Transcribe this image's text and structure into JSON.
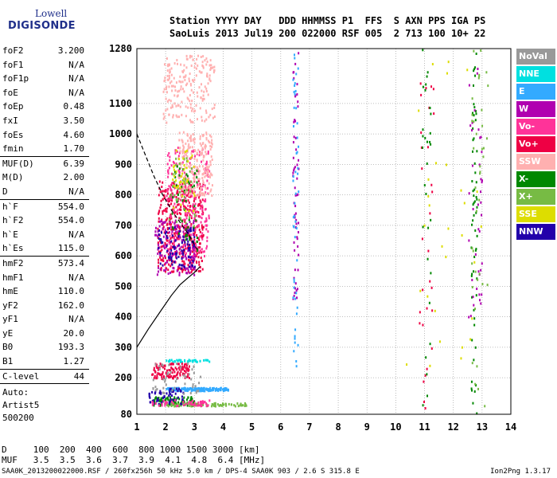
{
  "logo": {
    "line1": "Lowell",
    "line2": "DIGISONDE"
  },
  "header": {
    "row1": "Station YYYY DAY   DDD HHMMSS P1  FFS  S AXN PPS IGA PS",
    "row2": "SaoLuis 2013 Jul19 200 022000 RSF 005  2 713 100 10+ 22"
  },
  "params": [
    {
      "name": "foF2",
      "value": "3.200"
    },
    {
      "name": "foF1",
      "value": "N/A"
    },
    {
      "name": "foF1p",
      "value": "N/A"
    },
    {
      "name": "foE",
      "value": "N/A"
    },
    {
      "name": "foEp",
      "value": "0.48"
    },
    {
      "name": "fxI",
      "value": "3.50"
    },
    {
      "name": "foEs",
      "value": "4.60"
    },
    {
      "name": "fmin",
      "value": "1.70"
    },
    {
      "name": "MUF(D)",
      "value": "6.39"
    },
    {
      "name": "M(D)",
      "value": "2.00"
    },
    {
      "name": "D",
      "value": "N/A"
    },
    {
      "name": "h`F",
      "value": "554.0"
    },
    {
      "name": "h`F2",
      "value": "554.0"
    },
    {
      "name": "h`E",
      "value": "N/A"
    },
    {
      "name": "h`Es",
      "value": "115.0"
    },
    {
      "name": "hmF2",
      "value": "573.4"
    },
    {
      "name": "hmF1",
      "value": "N/A"
    },
    {
      "name": "hmE",
      "value": "110.0"
    },
    {
      "name": "yF2",
      "value": "162.0"
    },
    {
      "name": "yF1",
      "value": "N/A"
    },
    {
      "name": "yE",
      "value": "20.0"
    },
    {
      "name": "B0",
      "value": "193.3"
    },
    {
      "name": "B1",
      "value": "1.27"
    },
    {
      "name": "C-level",
      "value": "44"
    }
  ],
  "auto": {
    "line1": "Auto:",
    "line2": "Artist5",
    "line3": "500200"
  },
  "legend": [
    {
      "label": "NoVal",
      "color": "#999999"
    },
    {
      "label": "NNE",
      "color": "#00e0e0"
    },
    {
      "label": "E",
      "color": "#33aaff"
    },
    {
      "label": "W",
      "color": "#b000b0"
    },
    {
      "label": "Vo-",
      "color": "#ff3399"
    },
    {
      "label": "Vo+",
      "color": "#ee0044"
    },
    {
      "label": "SSW",
      "color": "#ffb0b0"
    },
    {
      "label": "X-",
      "color": "#008800"
    },
    {
      "label": "X+",
      "color": "#77bb44"
    },
    {
      "label": "SSE",
      "color": "#dddd00"
    },
    {
      "label": "NNW",
      "color": "#2200aa"
    }
  ],
  "muf_table": {
    "row1": "D     100  200  400  600  800 1000 1500 3000 [km]",
    "row2": "MUF   3.5  3.5  3.6  3.7  3.9  4.1  4.8  6.4 [MHz]"
  },
  "footer": "SAA0K_2013200022000.RSF / 260fx256h 50 kHz 5.0 km / DPS-4 SAA0K 903 / 2.6 S 315.8 E",
  "version": "Ion2Png 1.3.17",
  "chart_data": {
    "type": "scatter",
    "x_ticks": [
      1,
      2,
      3,
      4,
      5,
      6,
      7,
      8,
      9,
      10,
      11,
      12,
      13,
      14
    ],
    "y_ticks": [
      80,
      200,
      300,
      400,
      500,
      600,
      700,
      800,
      900,
      1000,
      1100,
      1280
    ],
    "xlim": [
      1,
      14
    ],
    "ylim": [
      80,
      1280
    ],
    "grid": true,
    "profile_curve": {
      "x": [
        1.0,
        1.4,
        1.8,
        2.2,
        2.5,
        2.8,
        3.0,
        3.2
      ],
      "y": [
        300,
        360,
        415,
        470,
        505,
        530,
        545,
        565
      ]
    },
    "dashed_curve": {
      "x": [
        1.0,
        1.3,
        1.6,
        1.9,
        2.2,
        2.5,
        2.8,
        3.1
      ],
      "y": [
        1000,
        930,
        860,
        800,
        750,
        710,
        670,
        620
      ]
    },
    "clusters": [
      {
        "mode": "Vo+",
        "x": [
          1.7,
          3.3
        ],
        "y": [
          550,
          850
        ],
        "n": 420
      },
      {
        "mode": "Vo-",
        "x": [
          2.0,
          3.5
        ],
        "y": [
          600,
          960
        ],
        "n": 260
      },
      {
        "mode": "SSW",
        "x": [
          2.4,
          3.6
        ],
        "y": [
          800,
          1010
        ],
        "n": 220
      },
      {
        "mode": "SSW",
        "x": [
          1.9,
          3.7
        ],
        "y": [
          1040,
          1260
        ],
        "n": 200
      },
      {
        "mode": "W",
        "x": [
          1.6,
          3.0
        ],
        "y": [
          540,
          720
        ],
        "n": 140
      },
      {
        "mode": "NNW",
        "x": [
          1.7,
          3.0
        ],
        "y": [
          560,
          700
        ],
        "n": 90
      },
      {
        "mode": "X-",
        "x": [
          2.2,
          3.1
        ],
        "y": [
          620,
          900
        ],
        "n": 50
      },
      {
        "mode": "X+",
        "x": [
          2.1,
          3.0
        ],
        "y": [
          700,
          930
        ],
        "n": 40
      },
      {
        "mode": "SSE",
        "x": [
          2.2,
          3.0
        ],
        "y": [
          750,
          950
        ],
        "n": 40
      },
      {
        "mode": "E",
        "x": [
          2.0,
          4.2
        ],
        "y": [
          160,
          170
        ],
        "n": 160
      },
      {
        "mode": "NNE",
        "x": [
          2.0,
          3.5
        ],
        "y": [
          255,
          262
        ],
        "n": 40
      },
      {
        "mode": "Vo+",
        "x": [
          1.5,
          2.8
        ],
        "y": [
          200,
          250
        ],
        "n": 120
      },
      {
        "mode": "X-",
        "x": [
          1.5,
          3.0
        ],
        "y": [
          110,
          140
        ],
        "n": 90
      },
      {
        "mode": "X+",
        "x": [
          2.0,
          4.8
        ],
        "y": [
          110,
          120
        ],
        "n": 90
      },
      {
        "mode": "NNW",
        "x": [
          1.4,
          2.6
        ],
        "y": [
          115,
          170
        ],
        "n": 60
      },
      {
        "mode": "NoVal",
        "x": [
          1.5,
          3.2
        ],
        "y": [
          150,
          250
        ],
        "n": 50
      },
      {
        "mode": "Vo-",
        "x": [
          1.5,
          3.5
        ],
        "y": [
          110,
          130
        ],
        "n": 50
      },
      {
        "mode": "W",
        "x": [
          6.4,
          6.6
        ],
        "y": [
          460,
          1280
        ],
        "n": 60
      },
      {
        "mode": "E",
        "x": [
          6.4,
          6.6
        ],
        "y": [
          220,
          1280
        ],
        "n": 50
      },
      {
        "mode": "X-",
        "x": [
          12.6,
          12.8
        ],
        "y": [
          80,
          1280
        ],
        "n": 60
      },
      {
        "mode": "W",
        "x": [
          12.5,
          13.0
        ],
        "y": [
          400,
          1280
        ],
        "n": 40
      },
      {
        "mode": "X+",
        "x": [
          12.6,
          13.2
        ],
        "y": [
          80,
          1280
        ],
        "n": 40
      },
      {
        "mode": "Vo+",
        "x": [
          10.8,
          11.3
        ],
        "y": [
          100,
          1200
        ],
        "n": 30
      },
      {
        "mode": "SSE",
        "x": [
          10.3,
          13.0
        ],
        "y": [
          200,
          1280
        ],
        "n": 30
      },
      {
        "mode": "X-",
        "x": [
          10.9,
          11.2
        ],
        "y": [
          80,
          1280
        ],
        "n": 30
      }
    ]
  }
}
